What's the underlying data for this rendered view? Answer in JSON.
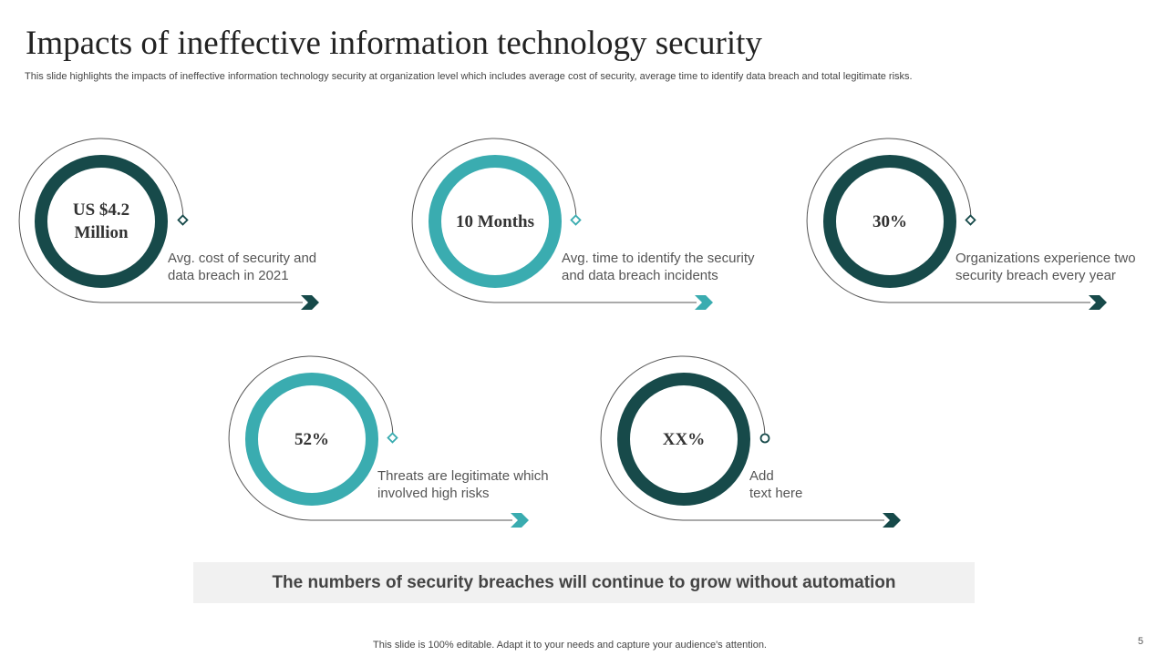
{
  "header": {
    "title": "Impacts of ineffective information technology security",
    "subtitle": "This slide highlights the impacts of ineffective information technology security at organization level which includes average cost of security, average time to identify data breach and total legitimate risks."
  },
  "colors": {
    "dark": "#174a4a",
    "teal": "#3aacb0",
    "line": "#555555",
    "banner_bg": "#f1f1f1"
  },
  "metrics": [
    {
      "value": "US $4.2 Million",
      "description": [
        "Avg. cost of security and",
        "data breach in 2021"
      ],
      "color": "dark"
    },
    {
      "value": "10 Months",
      "description": [
        "Avg. time to identify the security",
        "and data breach incidents"
      ],
      "color": "teal"
    },
    {
      "value": "30%",
      "description": [
        "Organizations experience two",
        "security breach every year"
      ],
      "color": "dark"
    },
    {
      "value": "52%",
      "description": [
        "Threats  are legitimate which",
        "involved high risks"
      ],
      "color": "teal"
    },
    {
      "value": "XX%",
      "description": [
        "Add",
        "text here"
      ],
      "color": "dark"
    }
  ],
  "banner": {
    "text": "The numbers of security breaches will continue to grow without automation"
  },
  "footer": {
    "note": "This slide is 100% editable. Adapt it to your needs and capture your audience's attention.",
    "page_number": "5"
  }
}
